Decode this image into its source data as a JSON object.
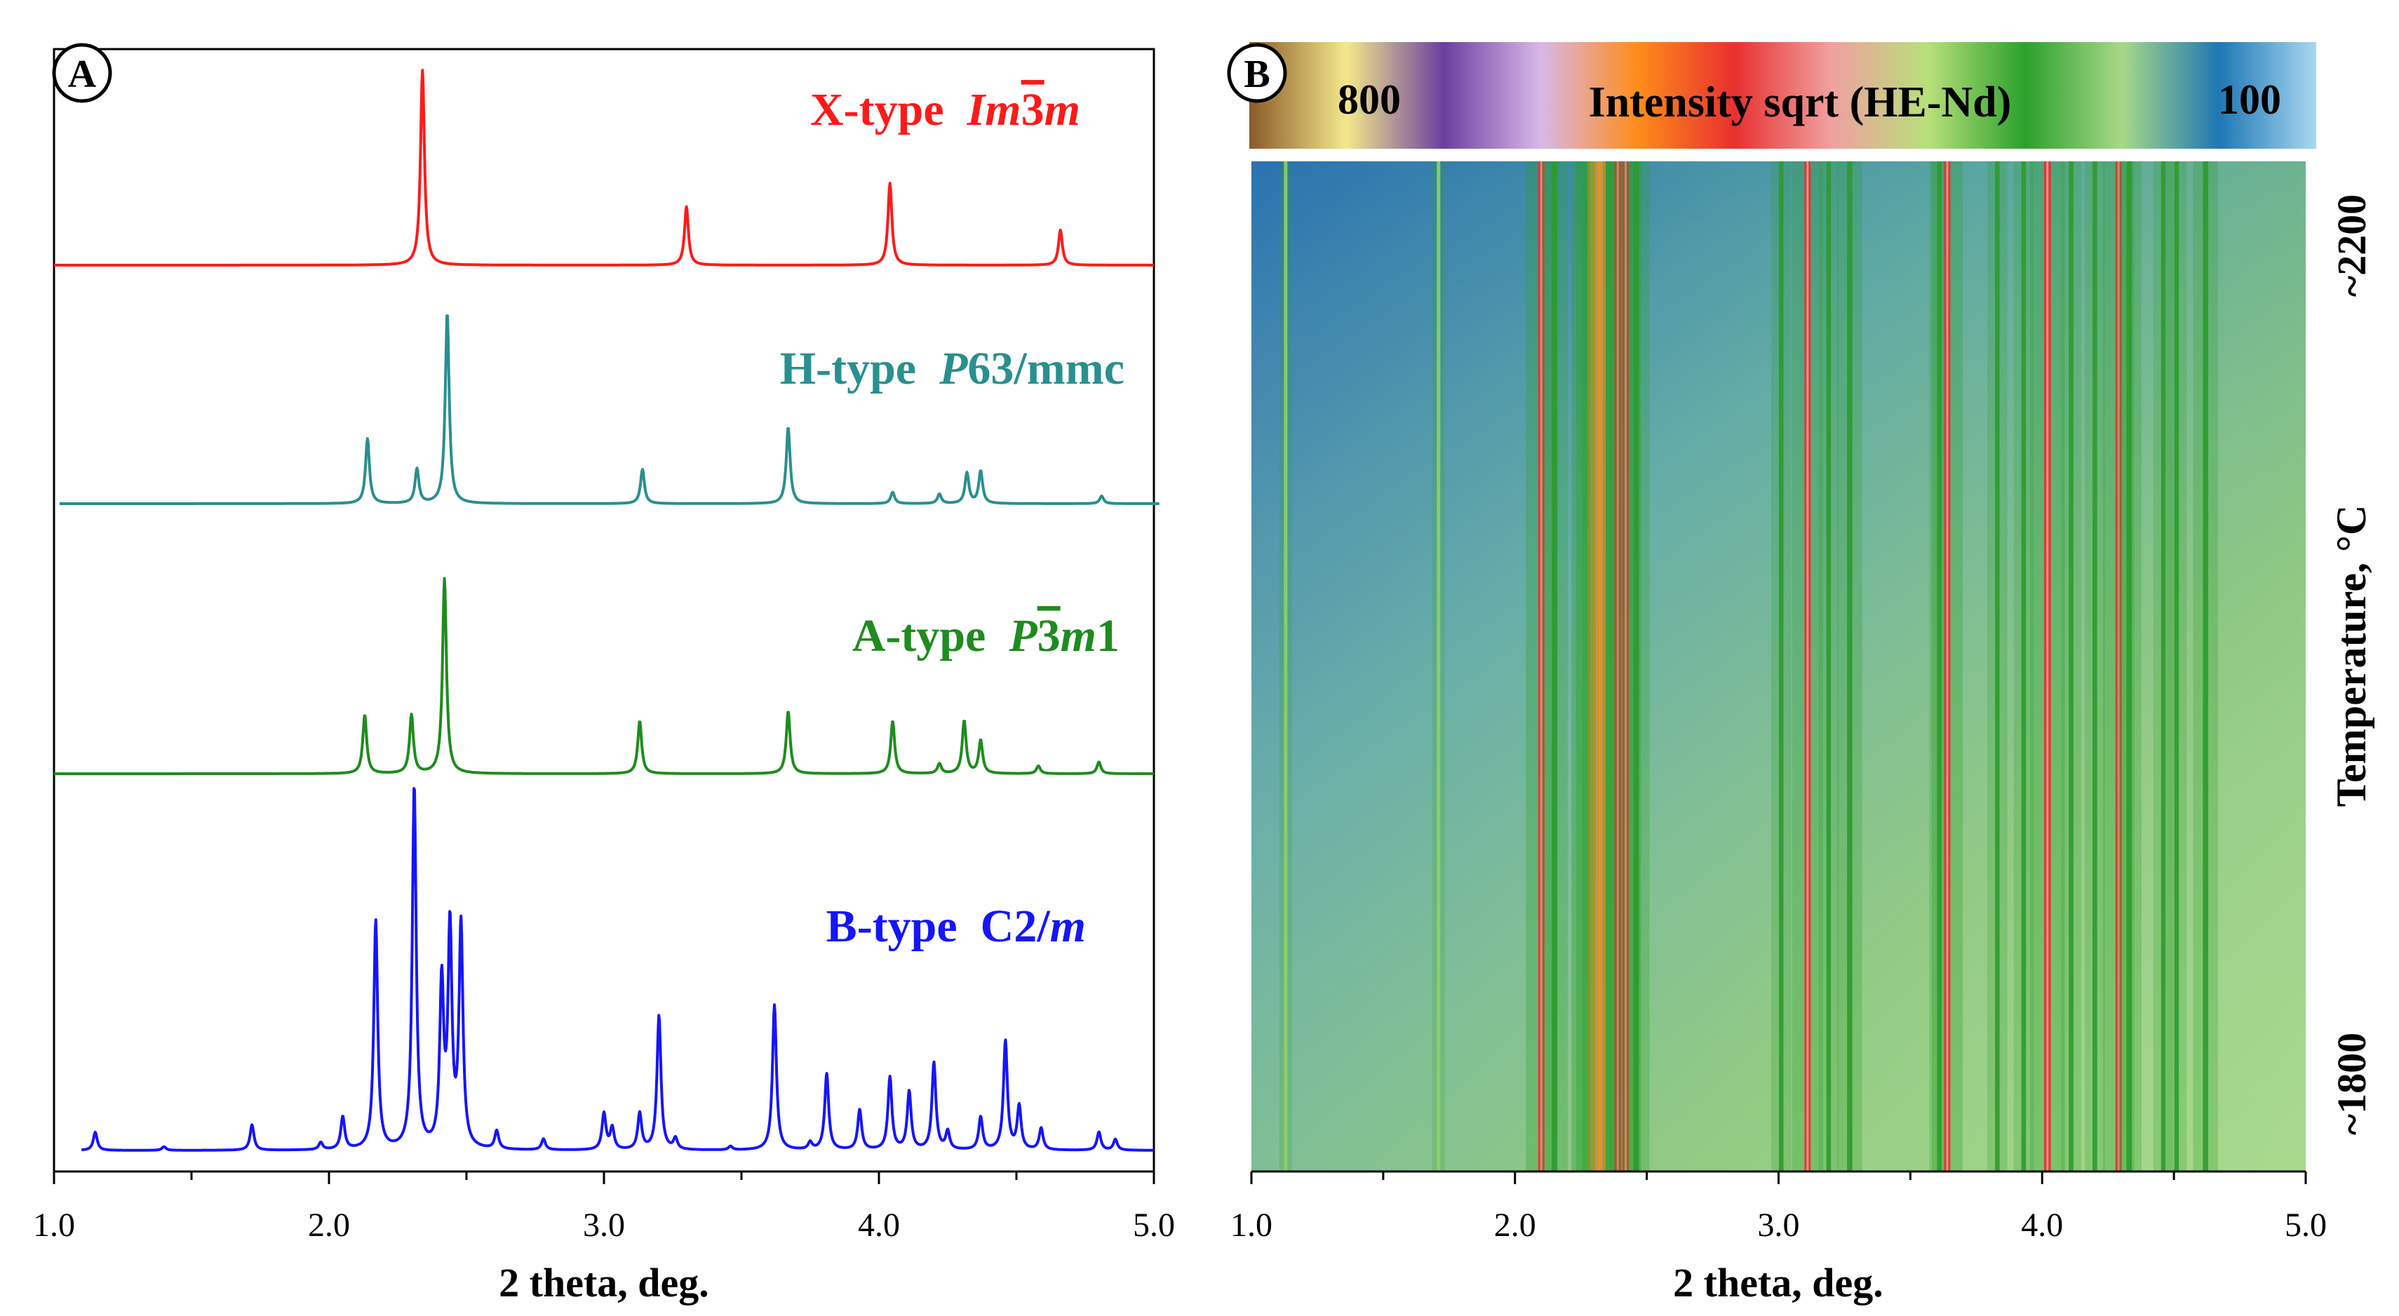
{
  "chart_data": [
    {
      "panel": "A",
      "type": "line",
      "xlabel": "2 theta, deg.",
      "xlim": [
        1.0,
        5.0
      ],
      "xticks": [
        "1.0",
        "2.0",
        "3.0",
        "4.0",
        "5.0"
      ],
      "series": [
        {
          "name": "X-type",
          "label_text": "X-type",
          "space_group": "Im3m",
          "space_group_parts": [
            "Im",
            "3",
            "m"
          ],
          "color": "#ff1a1a",
          "x_range": [
            1.0,
            5.0
          ],
          "peaks": [
            {
              "x": 2.34,
              "intensity": 1.0
            },
            {
              "x": 3.3,
              "intensity": 0.3
            },
            {
              "x": 4.04,
              "intensity": 0.42
            },
            {
              "x": 4.66,
              "intensity": 0.18
            }
          ]
        },
        {
          "name": "H-type",
          "label_text": "H-type",
          "space_group": "P63/mmc",
          "space_group_parts": [
            "P",
            "63/mmc"
          ],
          "color": "#2a8f8f",
          "x_range": [
            1.02,
            5.02
          ],
          "peaks": [
            {
              "x": 2.14,
              "intensity": 0.34
            },
            {
              "x": 2.32,
              "intensity": 0.18
            },
            {
              "x": 2.43,
              "intensity": 1.0
            },
            {
              "x": 3.14,
              "intensity": 0.18
            },
            {
              "x": 3.67,
              "intensity": 0.4
            },
            {
              "x": 4.05,
              "intensity": 0.06
            },
            {
              "x": 4.22,
              "intensity": 0.05
            },
            {
              "x": 4.32,
              "intensity": 0.16
            },
            {
              "x": 4.37,
              "intensity": 0.17
            },
            {
              "x": 4.81,
              "intensity": 0.04
            }
          ]
        },
        {
          "name": "A-type",
          "label_text": "A-type",
          "space_group": "P3m1",
          "space_group_parts": [
            "P",
            "3",
            "m",
            "1"
          ],
          "color": "#1e8c1e",
          "x_range": [
            1.0,
            5.0
          ],
          "peaks": [
            {
              "x": 2.13,
              "intensity": 0.3
            },
            {
              "x": 2.3,
              "intensity": 0.3
            },
            {
              "x": 2.42,
              "intensity": 1.0
            },
            {
              "x": 3.13,
              "intensity": 0.27
            },
            {
              "x": 3.67,
              "intensity": 0.32
            },
            {
              "x": 4.05,
              "intensity": 0.27
            },
            {
              "x": 4.22,
              "intensity": 0.05
            },
            {
              "x": 4.31,
              "intensity": 0.27
            },
            {
              "x": 4.37,
              "intensity": 0.17
            },
            {
              "x": 4.58,
              "intensity": 0.04
            },
            {
              "x": 4.8,
              "intensity": 0.06
            }
          ]
        },
        {
          "name": "B-type",
          "label_text": "B-type",
          "space_group": "C2/m",
          "space_group_parts": [
            "C2/",
            "m"
          ],
          "color": "#1515ff",
          "x_range": [
            1.1,
            5.0
          ],
          "peaks": [
            {
              "x": 1.15,
              "intensity": 0.05
            },
            {
              "x": 1.4,
              "intensity": 0.01
            },
            {
              "x": 1.72,
              "intensity": 0.07
            },
            {
              "x": 1.97,
              "intensity": 0.02
            },
            {
              "x": 2.05,
              "intensity": 0.09
            },
            {
              "x": 2.17,
              "intensity": 0.63
            },
            {
              "x": 2.31,
              "intensity": 1.0
            },
            {
              "x": 2.41,
              "intensity": 0.45
            },
            {
              "x": 2.44,
              "intensity": 0.6
            },
            {
              "x": 2.48,
              "intensity": 0.61
            },
            {
              "x": 2.61,
              "intensity": 0.05
            },
            {
              "x": 2.78,
              "intensity": 0.03
            },
            {
              "x": 3.0,
              "intensity": 0.1
            },
            {
              "x": 3.03,
              "intensity": 0.06
            },
            {
              "x": 3.13,
              "intensity": 0.1
            },
            {
              "x": 3.2,
              "intensity": 0.37
            },
            {
              "x": 3.26,
              "intensity": 0.03
            },
            {
              "x": 3.46,
              "intensity": 0.01
            },
            {
              "x": 3.62,
              "intensity": 0.4
            },
            {
              "x": 3.75,
              "intensity": 0.02
            },
            {
              "x": 3.81,
              "intensity": 0.21
            },
            {
              "x": 3.93,
              "intensity": 0.11
            },
            {
              "x": 4.04,
              "intensity": 0.2
            },
            {
              "x": 4.11,
              "intensity": 0.16
            },
            {
              "x": 4.2,
              "intensity": 0.24
            },
            {
              "x": 4.25,
              "intensity": 0.05
            },
            {
              "x": 4.37,
              "intensity": 0.09
            },
            {
              "x": 4.46,
              "intensity": 0.3
            },
            {
              "x": 4.51,
              "intensity": 0.12
            },
            {
              "x": 4.59,
              "intensity": 0.06
            },
            {
              "x": 4.8,
              "intensity": 0.05
            },
            {
              "x": 4.86,
              "intensity": 0.03
            }
          ]
        }
      ]
    },
    {
      "panel": "B",
      "type": "heatmap",
      "title": "Intensity sqrt (HE-Nd)",
      "xlabel": "2 theta, deg.",
      "ylabel": "Temperature, °C",
      "xlim": [
        1.0,
        5.0
      ],
      "xticks": [
        "1.0",
        "2.0",
        "3.0",
        "4.0",
        "5.0"
      ],
      "y_top_label": "~2200",
      "y_bottom_label": "~1800",
      "colorbar": {
        "min_label": "100",
        "max_label": "800",
        "colors_high_to_low": [
          "#8a5a28",
          "#f3e98c",
          "#6b3fa0",
          "#d8b8e8",
          "#ff8c1a",
          "#e83030",
          "#f0a0a0",
          "#b7e07a",
          "#2ca02c",
          "#a8d888",
          "#1f77b4",
          "#a8d8f0"
        ]
      },
      "lines": [
        {
          "x": 1.13,
          "intensity": 0.12
        },
        {
          "x": 1.71,
          "intensity": 0.12
        },
        {
          "x": 2.1,
          "intensity": 0.62
        },
        {
          "x": 2.15,
          "intensity": 0.5
        },
        {
          "x": 2.29,
          "intensity": 0.86
        },
        {
          "x": 2.31,
          "intensity": 0.9
        },
        {
          "x": 2.33,
          "intensity": 0.86
        },
        {
          "x": 2.39,
          "intensity": 0.7
        },
        {
          "x": 2.42,
          "intensity": 0.62
        },
        {
          "x": 2.46,
          "intensity": 0.5
        },
        {
          "x": 3.01,
          "intensity": 0.32
        },
        {
          "x": 3.11,
          "intensity": 0.62
        },
        {
          "x": 3.19,
          "intensity": 0.32
        },
        {
          "x": 3.27,
          "intensity": 0.45
        },
        {
          "x": 3.61,
          "intensity": 0.32
        },
        {
          "x": 3.64,
          "intensity": 0.62
        },
        {
          "x": 3.83,
          "intensity": 0.32
        },
        {
          "x": 3.93,
          "intensity": 0.32
        },
        {
          "x": 4.02,
          "intensity": 0.72
        },
        {
          "x": 4.11,
          "intensity": 0.32
        },
        {
          "x": 4.2,
          "intensity": 0.32
        },
        {
          "x": 4.29,
          "intensity": 0.62
        },
        {
          "x": 4.33,
          "intensity": 0.45
        },
        {
          "x": 4.46,
          "intensity": 0.32
        },
        {
          "x": 4.51,
          "intensity": 0.32
        },
        {
          "x": 4.62,
          "intensity": 0.45
        }
      ]
    }
  ],
  "panel_labels": {
    "a": "A",
    "b": "B"
  },
  "colors": {
    "red_line": "#e83030",
    "background": "#5ba8a0"
  }
}
